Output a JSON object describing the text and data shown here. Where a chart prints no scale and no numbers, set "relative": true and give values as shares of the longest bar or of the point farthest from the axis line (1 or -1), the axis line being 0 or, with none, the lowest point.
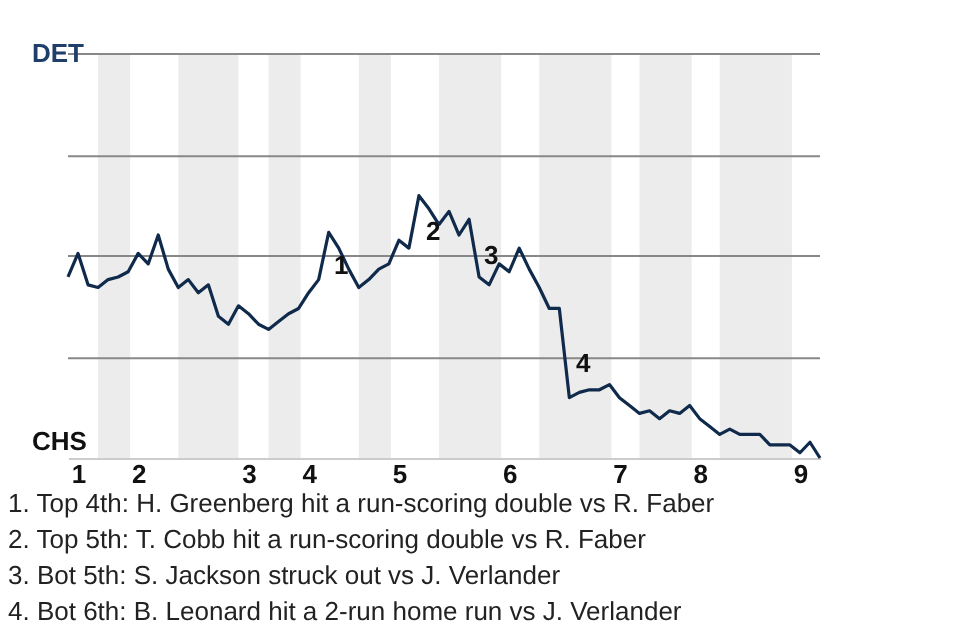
{
  "chart_data": {
    "type": "line",
    "relative": true,
    "categories": [
      null,
      "1",
      null,
      null,
      null,
      null,
      null,
      "2",
      null,
      null,
      null,
      null,
      null,
      null,
      null,
      null,
      null,
      null,
      "3",
      null,
      null,
      null,
      null,
      null,
      "4",
      null,
      null,
      null,
      null,
      null,
      null,
      null,
      null,
      "5",
      null,
      null,
      null,
      null,
      null,
      null,
      null,
      null,
      null,
      null,
      "6",
      null,
      null,
      null,
      null,
      null,
      null,
      null,
      null,
      null,
      null,
      "7",
      null,
      null,
      null,
      null,
      null,
      null,
      null,
      "8",
      null,
      null,
      null,
      null,
      null,
      null,
      null,
      null,
      null,
      "9",
      null,
      null
    ],
    "series": [
      {
        "color": "#102a4c",
        "values": [
          0.69,
          0.78,
          0.66,
          0.65,
          0.68,
          0.69,
          0.71,
          0.78,
          0.74,
          0.85,
          0.72,
          0.65,
          0.68,
          0.63,
          0.66,
          0.54,
          0.51,
          0.58,
          0.55,
          0.51,
          0.49,
          0.52,
          0.55,
          0.57,
          0.63,
          0.68,
          0.86,
          0.8,
          0.72,
          0.65,
          0.68,
          0.72,
          0.74,
          0.83,
          0.8,
          1,
          0.95,
          0.89,
          0.94,
          0.85,
          0.91,
          0.69,
          0.66,
          0.74,
          0.71,
          0.8,
          0.72,
          0.65,
          0.57,
          0.57,
          0.23,
          0.25,
          0.26,
          0.26,
          0.28,
          0.23,
          0.2,
          0.17,
          0.18,
          0.15,
          0.18,
          0.17,
          0.2,
          0.15,
          0.12,
          0.09,
          0.11,
          0.09,
          0.09,
          0.09,
          0.05,
          0.05,
          0.05,
          0.02,
          0.06,
          0
        ]
      }
    ],
    "ref_lines": [
      {
        "axis": "y",
        "value": 0.38,
        "color": "#888888"
      },
      {
        "axis": "y",
        "value": 0.77,
        "color": "#888888"
      },
      {
        "axis": "y",
        "value": 1.15,
        "color": "#888888"
      },
      {
        "axis": "y",
        "value": 1.54,
        "color": "#888888"
      }
    ],
    "marker": "none",
    "line_style": "solid",
    "annotations": [
      "DET",
      "CHS",
      "1",
      "2",
      "3",
      "4",
      "1. Top 4th: H. Greenberg hit a run-scoring double vs R. Faber",
      "2. Top 5th: T. Cobb hit a run-scoring double vs R. Faber",
      "3. Bot 5th: S. Jackson struck out vs J. Verlander",
      "4. Bot 6th: B. Leonard hit a 2-run home run vs J. Verlander"
    ]
  }
}
